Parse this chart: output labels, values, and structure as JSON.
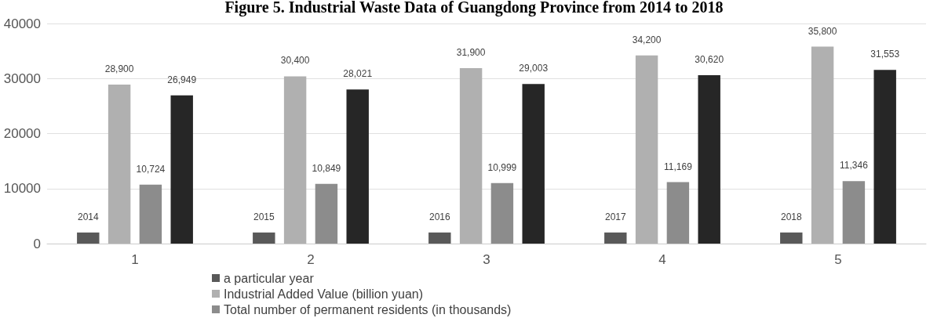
{
  "chart_data": {
    "type": "bar",
    "title": "Figure 5. Industrial Waste Data of Guangdong Province from 2014 to 2018",
    "categories": [
      "1",
      "2",
      "3",
      "4",
      "5"
    ],
    "series": [
      {
        "name": "a particular year",
        "color": "#595959",
        "values": [
          2014,
          2015,
          2016,
          2017,
          2018
        ],
        "value_labels": [
          "2014",
          "2015",
          "2016",
          "2017",
          "2018"
        ]
      },
      {
        "name": "Industrial Added Value (billion yuan)",
        "color": "#b0b0b0",
        "values": [
          28900,
          30400,
          31900,
          34200,
          35800
        ],
        "value_labels": [
          "28,900",
          "30,400",
          "31,900",
          "34,200",
          "35,800"
        ]
      },
      {
        "name": "Total number of permanent residents (in thousands)",
        "color": "#8c8c8c",
        "values": [
          10724,
          10849,
          10999,
          11169,
          11346
        ],
        "value_labels": [
          "10,724",
          "10,849",
          "10,999",
          "11,169",
          "11,346"
        ]
      },
      {
        "color": "#262626",
        "values": [
          26949,
          28021,
          29003,
          30620,
          31553
        ],
        "value_labels": [
          "26,949",
          "28,021",
          "29,003",
          "30,620",
          "31,553"
        ]
      }
    ],
    "ylim": [
      0,
      40000
    ],
    "yticks": [
      0,
      10000,
      20000,
      30000,
      40000
    ],
    "grid": "y",
    "legend": "bottom"
  }
}
